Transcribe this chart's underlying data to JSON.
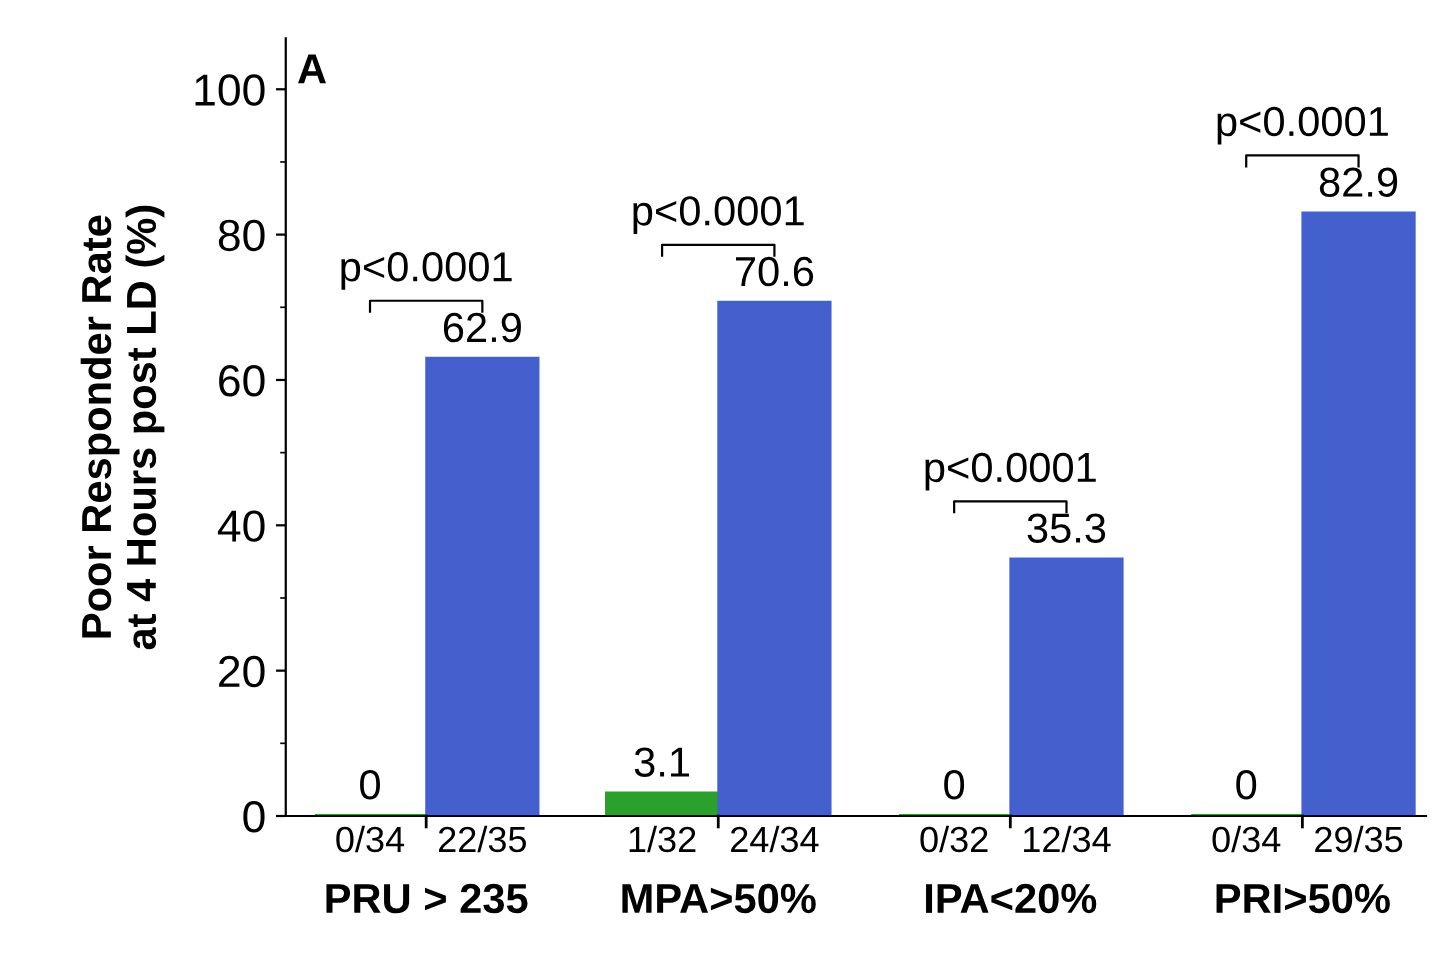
{
  "chart_data": {
    "type": "bar",
    "ylabel": "Poor Responder Rate\nat 4 Hours post LD (%)",
    "categories": [
      "0/34",
      "22/35",
      "1/32",
      "24/34",
      "0/32",
      "12/34",
      "0/34",
      "29/35"
    ],
    "values": [
      0,
      62.9,
      3.1,
      70.6,
      0,
      35.3,
      0,
      82.9
    ],
    "colors": [
      "#2ca02c",
      "#4460cc",
      "#2ca02c",
      "#4460cc",
      "#2ca02c",
      "#4460cc",
      "#2ca02c",
      "#4460cc"
    ],
    "data_labels": true,
    "ylim": [
      0,
      107
    ],
    "yticks": [
      0,
      20,
      40,
      60,
      80,
      100
    ],
    "grid": false,
    "annotations": [
      "A",
      "p<0.0001",
      "p<0.0001",
      "p<0.0001",
      "p<0.0001",
      "PRU > 235",
      "MPA>50%",
      "IPA<20%",
      "PRI>50%"
    ]
  }
}
